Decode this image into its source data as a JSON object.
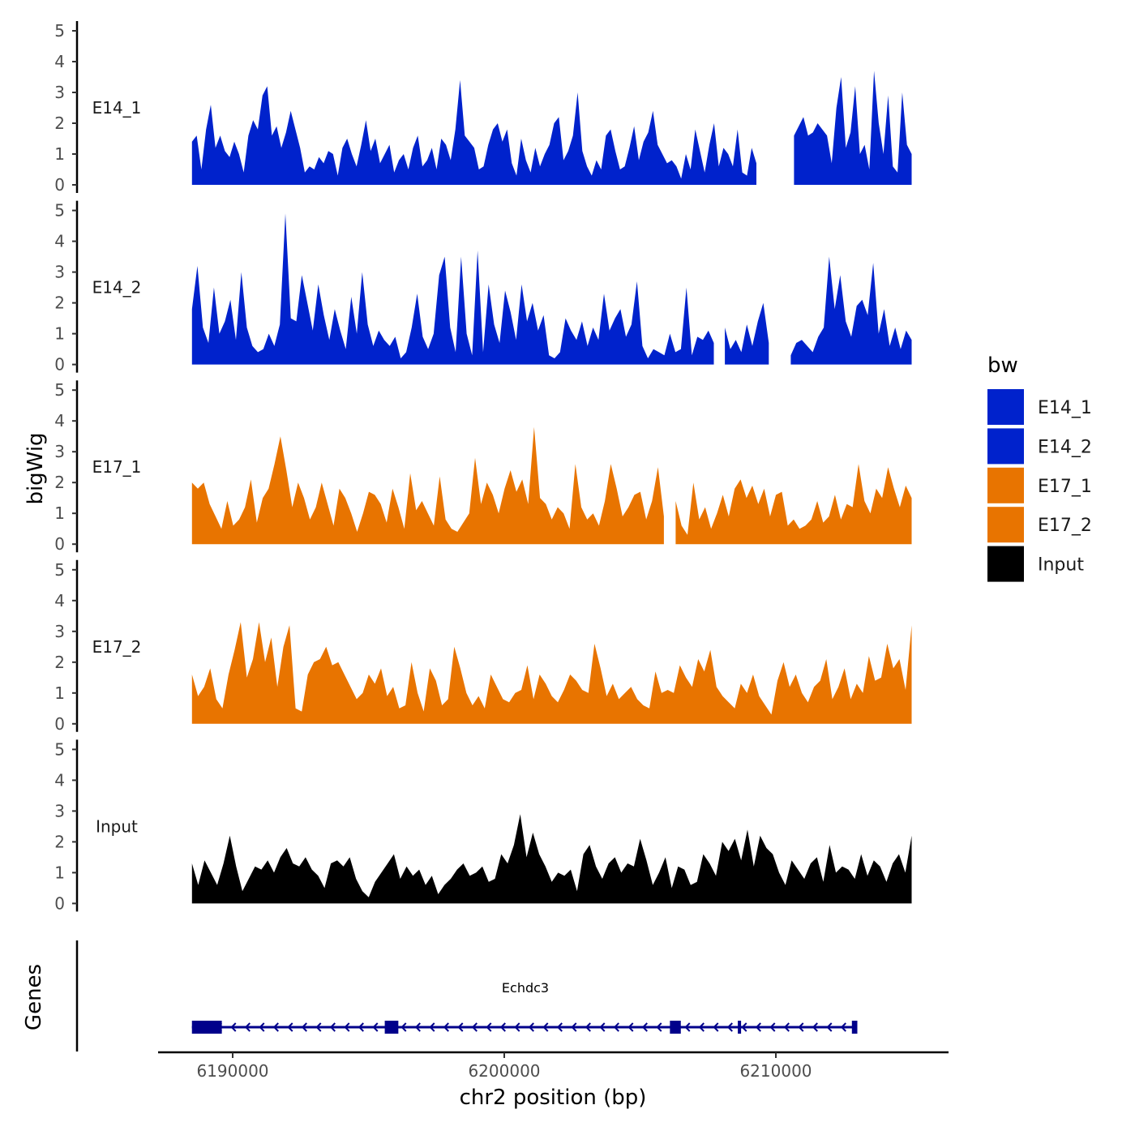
{
  "chart_data": {
    "type": "area",
    "region": {
      "chrom": "chr2",
      "start": 6188500,
      "end": 6215000
    },
    "y_axis_title": "bigWig",
    "x_axis_title": "chr2 position (bp)",
    "genes_axis_title": "Genes",
    "y_ticks": [
      "0",
      "1",
      "2",
      "3",
      "4",
      "5"
    ],
    "x_ticks": [
      {
        "value": 6190000,
        "label": "6190000"
      },
      {
        "value": 6200000,
        "label": "6200000"
      },
      {
        "value": 6210000,
        "label": "6210000"
      }
    ],
    "ylim": [
      0,
      5.2
    ],
    "tracks": [
      {
        "name": "E14_1",
        "color": "#0022CC",
        "values": [
          1.4,
          1.6,
          0.5,
          1.8,
          2.6,
          1.2,
          1.6,
          1.1,
          0.9,
          1.4,
          1.0,
          0.4,
          1.6,
          2.1,
          1.8,
          2.9,
          3.2,
          1.6,
          1.9,
          1.2,
          1.7,
          2.4,
          1.8,
          1.2,
          0.4,
          0.6,
          0.5,
          0.9,
          0.7,
          1.1,
          1.0,
          0.3,
          1.2,
          1.5,
          1.0,
          0.6,
          1.3,
          2.1,
          1.1,
          1.5,
          0.7,
          1.0,
          1.3,
          0.4,
          0.8,
          1.0,
          0.5,
          1.2,
          1.6,
          0.6,
          0.8,
          1.2,
          0.5,
          1.5,
          1.3,
          0.8,
          1.8,
          3.4,
          1.6,
          1.4,
          1.2,
          0.5,
          0.6,
          1.3,
          1.8,
          2.0,
          1.4,
          1.8,
          0.7,
          0.3,
          1.5,
          0.8,
          0.4,
          1.2,
          0.6,
          1.0,
          1.3,
          2.0,
          2.2,
          0.8,
          1.1,
          1.6,
          3.0,
          1.1,
          0.6,
          0.3,
          0.8,
          0.5,
          1.6,
          1.8,
          1.1,
          0.5,
          0.6,
          1.2,
          1.9,
          0.8,
          1.4,
          1.7,
          2.4,
          1.3,
          1.0,
          0.7,
          0.8,
          0.6,
          0.2,
          1.0,
          0.5,
          1.8,
          1.1,
          0.4,
          1.3,
          2.0,
          0.6,
          1.2,
          1.0,
          0.6,
          1.8,
          0.4,
          0.3,
          1.2,
          0.7,
          0.2,
          1.4,
          0.8,
          0.9,
          0.4,
          1.5,
          2.4,
          1.6,
          1.9,
          2.2,
          1.6,
          1.7,
          2.0,
          1.8,
          1.6,
          0.7,
          2.5,
          3.5,
          1.2,
          1.7,
          3.2,
          1.0,
          1.3,
          0.5,
          3.7,
          2.0,
          1.0,
          2.9,
          0.6,
          0.4,
          3.0,
          1.3,
          1.0
        ],
        "gaps": [
          [
            6209300,
            6210000
          ],
          [
            6210200,
            6210600
          ]
        ]
      },
      {
        "name": "E14_2",
        "color": "#0022CC",
        "values": [
          1.8,
          3.2,
          1.2,
          0.7,
          2.5,
          1.0,
          1.4,
          2.1,
          0.8,
          3.0,
          1.2,
          0.6,
          0.4,
          0.5,
          1.0,
          0.6,
          1.3,
          4.9,
          1.5,
          1.4,
          2.9,
          2.0,
          1.1,
          2.6,
          1.6,
          0.8,
          1.8,
          1.1,
          0.5,
          2.2,
          1.0,
          3.0,
          1.3,
          0.6,
          1.1,
          0.8,
          0.6,
          0.9,
          0.2,
          0.4,
          1.2,
          2.3,
          0.9,
          0.5,
          1.0,
          2.9,
          3.5,
          1.2,
          0.4,
          3.5,
          1.0,
          0.3,
          3.7,
          0.4,
          2.6,
          1.3,
          0.7,
          2.4,
          1.7,
          0.8,
          2.6,
          1.4,
          2.0,
          1.1,
          1.6,
          0.3,
          0.2,
          0.4,
          1.5,
          1.1,
          0.8,
          1.4,
          0.6,
          1.2,
          0.8,
          2.3,
          1.1,
          1.5,
          1.8,
          0.9,
          1.3,
          2.7,
          0.6,
          0.2,
          0.5,
          0.4,
          0.3,
          1.0,
          0.4,
          0.5,
          2.5,
          0.3,
          0.9,
          0.8,
          1.1,
          0.7,
          0.9,
          1.2,
          0.5,
          0.8,
          0.4,
          1.3,
          0.6,
          1.4,
          2.0,
          0.7,
          0.4,
          0.6,
          0.5,
          0.3,
          0.7,
          0.8,
          0.6,
          0.4,
          0.9,
          1.2,
          3.5,
          1.8,
          2.9,
          1.4,
          0.9,
          1.9,
          2.1,
          1.6,
          3.3,
          1.0,
          1.8,
          0.6,
          1.2,
          0.5,
          1.1,
          0.8
        ],
        "gaps": [
          [
            6207800,
            6208000
          ],
          [
            6209800,
            6210400
          ]
        ]
      },
      {
        "name": "E17_1",
        "color": "#E87400",
        "values": [
          2.0,
          1.8,
          2.0,
          1.3,
          0.9,
          0.5,
          1.4,
          0.6,
          0.8,
          1.2,
          2.1,
          0.7,
          1.5,
          1.8,
          2.6,
          3.5,
          2.4,
          1.2,
          2.0,
          1.5,
          0.8,
          1.2,
          2.0,
          1.3,
          0.6,
          1.8,
          1.5,
          1.0,
          0.4,
          1.0,
          1.7,
          1.6,
          1.3,
          0.7,
          1.8,
          1.2,
          0.5,
          2.3,
          1.1,
          1.4,
          1.0,
          0.6,
          2.2,
          0.8,
          0.5,
          0.4,
          0.7,
          1.0,
          2.8,
          1.3,
          2.0,
          1.6,
          1.0,
          1.8,
          2.4,
          1.7,
          2.1,
          1.3,
          3.8,
          1.5,
          1.3,
          0.8,
          1.2,
          1.0,
          0.5,
          2.6,
          1.2,
          0.8,
          1.0,
          0.6,
          1.4,
          2.6,
          1.8,
          0.9,
          1.2,
          1.6,
          1.7,
          0.8,
          1.4,
          2.5,
          0.9,
          1.1,
          1.4,
          0.6,
          0.3,
          2.0,
          0.8,
          1.2,
          0.5,
          1.0,
          1.6,
          0.9,
          1.8,
          2.1,
          1.5,
          1.9,
          1.3,
          1.8,
          0.9,
          1.6,
          1.7,
          0.6,
          0.8,
          0.5,
          0.6,
          0.8,
          1.4,
          0.7,
          0.9,
          1.6,
          0.8,
          1.3,
          1.2,
          2.6,
          1.4,
          1.0,
          1.8,
          1.5,
          2.5,
          1.8,
          1.2,
          1.9,
          1.5
        ],
        "gaps": [
          [
            6206000,
            6206300
          ]
        ]
      },
      {
        "name": "E17_2",
        "color": "#E87400",
        "values": [
          1.6,
          0.9,
          1.2,
          1.8,
          0.8,
          0.5,
          1.6,
          2.4,
          3.3,
          1.5,
          2.1,
          3.3,
          2.0,
          2.8,
          1.2,
          2.5,
          3.2,
          0.5,
          0.4,
          1.6,
          2.0,
          2.1,
          2.5,
          1.9,
          2.0,
          1.6,
          1.2,
          0.8,
          1.0,
          1.6,
          1.3,
          1.8,
          0.9,
          1.2,
          0.5,
          0.6,
          2.0,
          1.0,
          0.4,
          1.8,
          1.4,
          0.6,
          0.8,
          2.5,
          1.8,
          1.0,
          0.6,
          0.9,
          0.5,
          1.6,
          1.2,
          0.8,
          0.7,
          1.0,
          1.1,
          1.9,
          0.8,
          1.6,
          1.3,
          0.9,
          0.7,
          1.1,
          1.6,
          1.4,
          1.1,
          1.0,
          2.6,
          1.8,
          0.9,
          1.3,
          0.8,
          1.0,
          1.2,
          0.8,
          0.6,
          0.5,
          1.7,
          1.0,
          1.1,
          1.0,
          1.9,
          1.5,
          1.2,
          2.1,
          1.7,
          2.4,
          1.2,
          0.9,
          0.7,
          0.5,
          1.3,
          1.0,
          1.6,
          0.9,
          0.6,
          0.3,
          1.4,
          2.0,
          1.2,
          1.6,
          1.0,
          0.7,
          1.2,
          1.4,
          2.1,
          0.8,
          1.2,
          1.8,
          0.8,
          1.3,
          1.0,
          2.2,
          1.4,
          1.5,
          2.6,
          1.8,
          2.1,
          1.1,
          3.2
        ],
        "gaps": []
      },
      {
        "name": "Input",
        "color": "#000000",
        "values": [
          1.3,
          0.6,
          1.4,
          1.0,
          0.6,
          1.3,
          2.2,
          1.2,
          0.4,
          0.8,
          1.2,
          1.1,
          1.4,
          1.0,
          1.5,
          1.8,
          1.3,
          1.2,
          1.5,
          1.1,
          0.9,
          0.5,
          1.3,
          1.4,
          1.2,
          1.5,
          0.8,
          0.4,
          0.2,
          0.7,
          1.0,
          1.3,
          1.6,
          0.8,
          1.2,
          0.9,
          1.1,
          0.6,
          0.9,
          0.3,
          0.6,
          0.8,
          1.1,
          1.3,
          0.9,
          1.0,
          1.2,
          0.7,
          0.8,
          1.6,
          1.3,
          1.9,
          2.9,
          1.5,
          2.3,
          1.6,
          1.2,
          0.7,
          1.0,
          0.9,
          1.1,
          0.4,
          1.6,
          1.9,
          1.2,
          0.8,
          1.3,
          1.5,
          1.0,
          1.3,
          1.2,
          2.1,
          1.4,
          0.6,
          1.0,
          1.5,
          0.5,
          1.2,
          1.1,
          0.6,
          0.7,
          1.6,
          1.3,
          0.9,
          2.0,
          1.7,
          2.1,
          1.4,
          2.4,
          1.2,
          2.2,
          1.8,
          1.6,
          1.0,
          0.6,
          1.4,
          1.1,
          0.8,
          1.3,
          1.5,
          0.7,
          1.9,
          1.0,
          1.2,
          1.1,
          0.8,
          1.6,
          0.9,
          1.4,
          1.2,
          0.7,
          1.3,
          1.6,
          1.0,
          2.2
        ],
        "gaps": []
      }
    ],
    "legend": {
      "title": "bw",
      "items": [
        {
          "label": "E14_1",
          "color": "#0022CC"
        },
        {
          "label": "E14_2",
          "color": "#0022CC"
        },
        {
          "label": "E17_1",
          "color": "#E87400"
        },
        {
          "label": "E17_2",
          "color": "#E87400"
        },
        {
          "label": "Input",
          "color": "#000000"
        }
      ]
    },
    "gene": {
      "name": "Echdc3",
      "color": "#00008B",
      "strand": "-",
      "start": 6188500,
      "end": 6213000,
      "exons": [
        [
          6188500,
          6189600
        ],
        [
          6195600,
          6196100
        ],
        [
          6206100,
          6206500
        ],
        [
          6208600,
          6208700
        ],
        [
          6212800,
          6213000
        ]
      ]
    }
  }
}
